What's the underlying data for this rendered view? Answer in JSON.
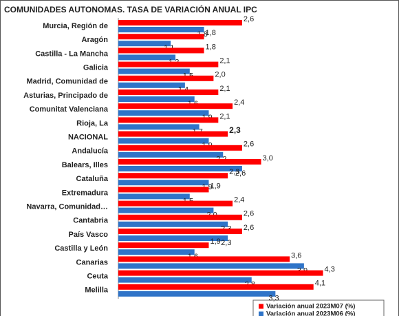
{
  "chart_data": {
    "type": "hbar",
    "title": "COMUNIDADES AUTONOMAS. TASA DE VARIACIÓN ANUAL IPC",
    "categories": [
      "Murcia, Región de",
      "Aragón",
      "Castilla - La Mancha",
      "Galicia",
      "Madrid, Comunidad de",
      "Asturias, Principado de",
      "Comunitat Valenciana",
      "Rioja, La",
      "NACIONAL",
      "Andalucía",
      "Balears, Illes",
      "Cataluña",
      "Extremadura",
      "Navarra, Comunidad…",
      "Cantabria",
      "País Vasco",
      "Castilla y León",
      "Canarias",
      "Ceuta",
      "Melilla"
    ],
    "series": [
      {
        "name": "Variación anual 2023M07 (%)",
        "color": "#ff0000",
        "values": [
          2.6,
          1.8,
          1.8,
          2.1,
          2,
          2.1,
          2.4,
          2.1,
          2.3,
          2.6,
          3,
          2.3,
          1.9,
          2.4,
          2.6,
          2.6,
          1.9,
          3.6,
          4.3,
          4.1
        ],
        "value_labels": [
          "2,6",
          "1,8",
          "1,8",
          "2,1",
          "2,0",
          "2,1",
          "2,4",
          "2,1",
          "2,3",
          "2,6",
          "3,0",
          "2,3",
          "1,9",
          "2,4",
          "2,6",
          "2,6",
          "1,9",
          "3,6",
          "4,3",
          "4,1"
        ]
      },
      {
        "name": "Variación anual 2023M06 (%)",
        "color": "#2f74c8",
        "values": [
          1.8,
          1.1,
          1.2,
          1.5,
          1.4,
          1.6,
          1.9,
          1.7,
          1.9,
          2.2,
          2.6,
          1.9,
          1.5,
          2,
          2.3,
          2.3,
          1.6,
          3.9,
          2.8,
          3.3
        ],
        "value_labels": [
          "1,8",
          "1,1",
          "1,2",
          "1,5",
          "1,4",
          "1,6",
          "1,9",
          "1,7",
          "1,9",
          "2,2",
          "2,6",
          "1,9",
          "1,5",
          "2,0",
          "2,3",
          "2,3",
          "1,6",
          "3,9",
          "2,8",
          "3,3"
        ]
      }
    ]
  }
}
